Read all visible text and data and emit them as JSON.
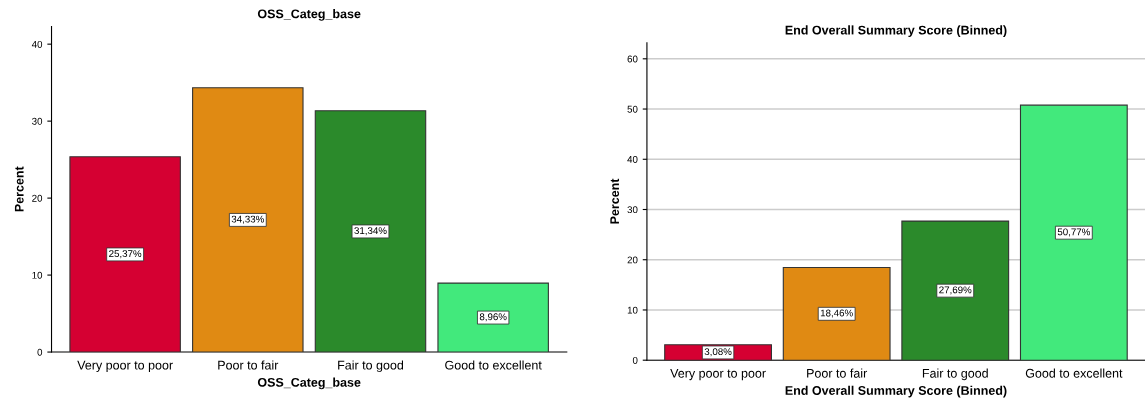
{
  "chart_data": [
    {
      "type": "bar",
      "title": "OSS_Categ_base",
      "xlabel": "OSS_Categ_base",
      "ylabel": "Percent",
      "categories": [
        "Very poor to poor",
        "Poor to fair",
        "Fair to good",
        "Good to excellent"
      ],
      "values": [
        25.37,
        34.33,
        31.34,
        8.96
      ],
      "colors": [
        "#d50032",
        "#e08a13",
        "#2b8a2b",
        "#42e97c"
      ],
      "value_labels": [
        "25,37%",
        "34,33%",
        "31,34%",
        "8,96%"
      ],
      "ylim": [
        0,
        42.3
      ],
      "yticks": [
        0,
        10,
        20,
        30,
        40
      ],
      "grid": false
    },
    {
      "type": "bar",
      "title": "End Overall Summary Score (Binned)",
      "xlabel": "End Overall Summary Score (Binned)",
      "ylabel": "Percent",
      "categories": [
        "Very poor to poor",
        "Poor to fair",
        "Fair to good",
        "Good to excellent"
      ],
      "values": [
        3.08,
        18.46,
        27.69,
        50.77
      ],
      "colors": [
        "#d50032",
        "#e08a13",
        "#2b8a2b",
        "#42e97c"
      ],
      "value_labels": [
        "3,08%",
        "18,46%",
        "27,69%",
        "50,77%"
      ],
      "ylim": [
        0,
        63.2
      ],
      "yticks": [
        0,
        10,
        20,
        30,
        40,
        50,
        60
      ],
      "grid": "y"
    }
  ]
}
